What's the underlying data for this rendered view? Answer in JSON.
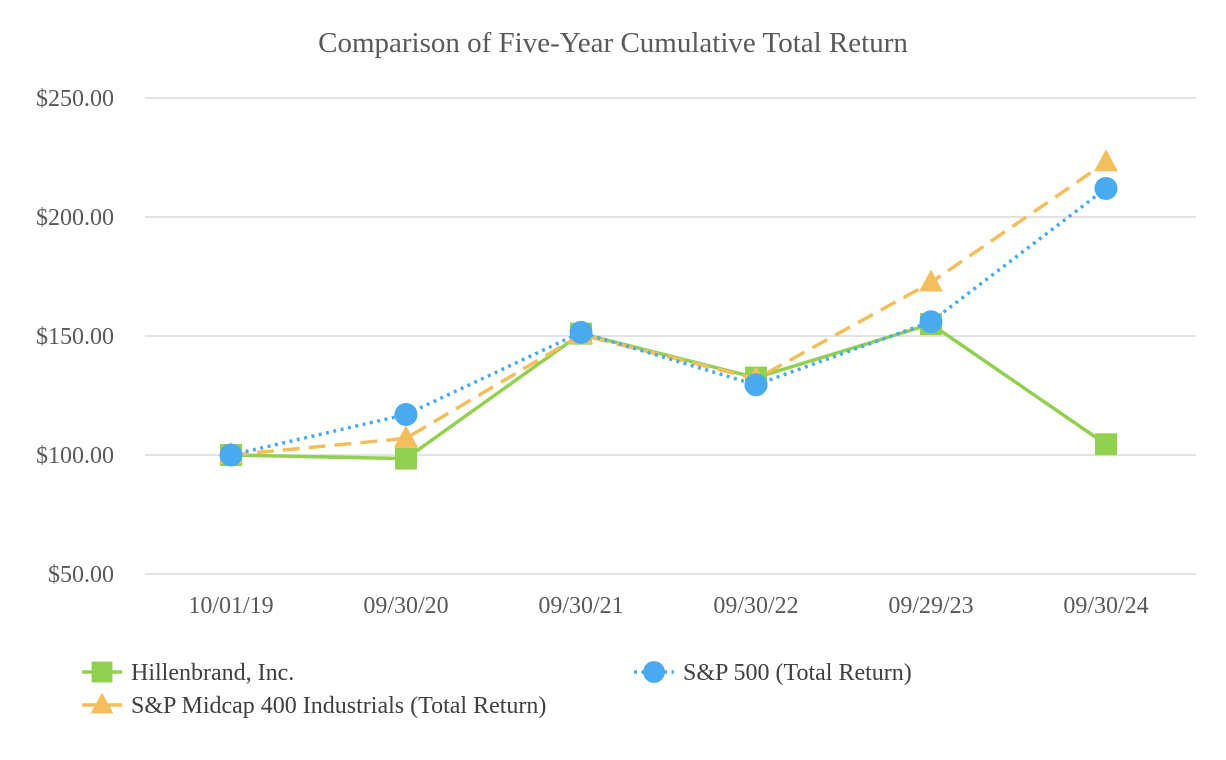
{
  "chart_data": {
    "type": "line",
    "title": "Comparison of Five-Year Cumulative Total Return",
    "xlabel": "",
    "ylabel": "",
    "categories": [
      "10/01/19",
      "09/30/20",
      "09/30/21",
      "09/30/22",
      "09/29/23",
      "09/30/24"
    ],
    "ylim": [
      50,
      250
    ],
    "yticks": [
      50,
      100,
      150,
      200,
      250
    ],
    "ytick_labels": [
      "$50.00",
      "$100.00",
      "$150.00",
      "$200.00",
      "$250.00"
    ],
    "grid": true,
    "legend_position": "bottom",
    "series": [
      {
        "name": "Hillenbrand, Inc.",
        "values": [
          100.0,
          98.5,
          151.0,
          132.5,
          155.0,
          104.5
        ],
        "color": "#92d050",
        "line_style": "solid",
        "marker": "square"
      },
      {
        "name": "S&P 500 (Total Return)",
        "values": [
          100.0,
          117.0,
          151.5,
          129.5,
          156.0,
          212.0
        ],
        "color": "#4aaaf0",
        "line_style": "dotted",
        "marker": "circle"
      },
      {
        "name": "S&P Midcap 400 Industrials (Total Return)",
        "values": [
          100.0,
          107.0,
          150.5,
          132.0,
          172.5,
          223.0
        ],
        "color": "#f4be5c",
        "line_style": "dashed",
        "marker": "triangle"
      }
    ]
  }
}
